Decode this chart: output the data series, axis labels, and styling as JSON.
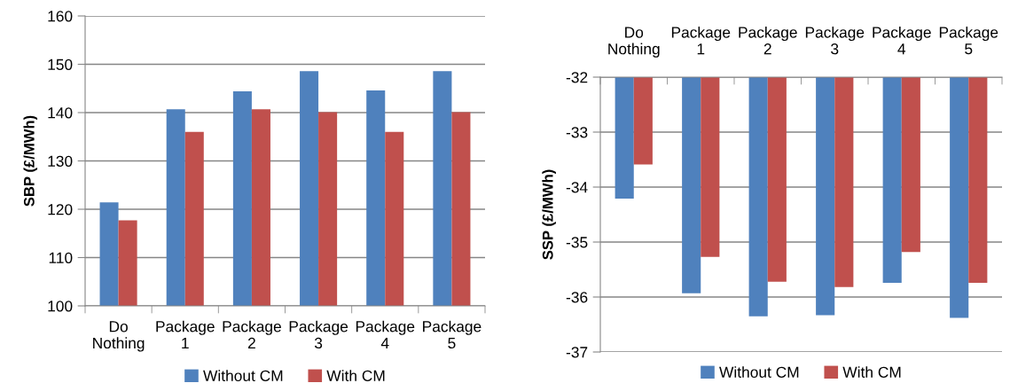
{
  "chart_data": [
    {
      "type": "bar",
      "ylabel": "SBP (£/MWh)",
      "categories": [
        "Do Nothing",
        "Package 1",
        "Package 2",
        "Package 3",
        "Package 4",
        "Package 5"
      ],
      "series": [
        {
          "name": "Without CM",
          "color": "#4f81bd",
          "values": [
            121.4,
            140.7,
            144.4,
            148.6,
            144.6,
            148.6
          ]
        },
        {
          "name": "With CM",
          "color": "#c0504d",
          "values": [
            117.7,
            136.0,
            140.7,
            140.1,
            136.0,
            140.1
          ]
        }
      ],
      "ylim": [
        100,
        160
      ],
      "yticks": [
        100,
        110,
        120,
        130,
        140,
        150,
        160
      ],
      "grid": "y",
      "legend": "bottom"
    },
    {
      "type": "bar",
      "ylabel": "SSP (£/MWh)",
      "categories": [
        "Do Nothing",
        "Package 1",
        "Package 2",
        "Package 3",
        "Package 4",
        "Package 5"
      ],
      "series": [
        {
          "name": "Without CM",
          "color": "#4f81bd",
          "values": [
            -34.21,
            -35.93,
            -36.35,
            -36.33,
            -35.74,
            -36.38
          ]
        },
        {
          "name": "With CM",
          "color": "#c0504d",
          "values": [
            -33.59,
            -35.27,
            -35.72,
            -35.82,
            -35.18,
            -35.74
          ]
        }
      ],
      "ylim": [
        -37,
        -32
      ],
      "yticks": [
        -37,
        -36,
        -35,
        -34,
        -33,
        -32
      ],
      "grid": "y",
      "legend": "bottom"
    }
  ]
}
